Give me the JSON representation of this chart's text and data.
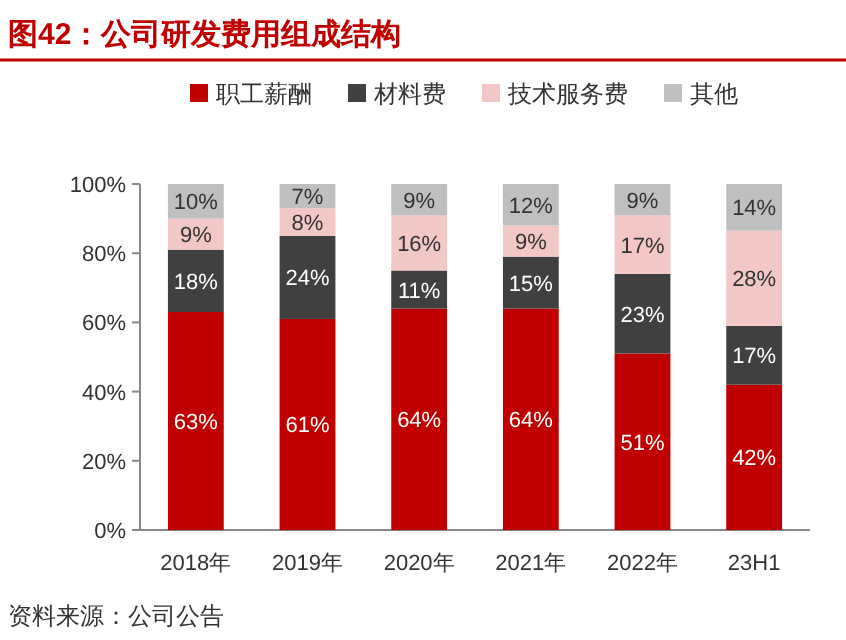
{
  "chart_data": {
    "type": "bar",
    "stacked": true,
    "title": "图42：公司研发费用组成结构",
    "annotations": [
      "资料来源：公司公告"
    ],
    "categories": [
      "2018年",
      "2019年",
      "2020年",
      "2021年",
      "2022年",
      "23H1"
    ],
    "series": [
      {
        "name": "职工薪酬",
        "color": "#c00000",
        "values": [
          63,
          61,
          64,
          64,
          51,
          42
        ],
        "value_labels": [
          "63%",
          "61%",
          "64%",
          "64%",
          "51%",
          "42%"
        ]
      },
      {
        "name": "材料费",
        "color": "#404040",
        "values": [
          18,
          24,
          11,
          15,
          23,
          17
        ],
        "value_labels": [
          "18%",
          "24%",
          "11%",
          "15%",
          "23%",
          "17%"
        ]
      },
      {
        "name": "技术服务费",
        "color": "#f4c7c7",
        "values": [
          9,
          8,
          16,
          9,
          17,
          27.5
        ],
        "value_labels": [
          "9%",
          "8%",
          "16%",
          "9%",
          "17%",
          "28%"
        ]
      },
      {
        "name": "其他",
        "color": "#bfbfbf",
        "values": [
          10,
          7,
          9,
          12,
          9,
          13.5
        ],
        "value_labels": [
          "10%",
          "7%",
          "9%",
          "12%",
          "9%",
          "14%"
        ]
      }
    ],
    "ylim": [
      0,
      100
    ],
    "yticks": [
      {
        "value": 0,
        "label": "0%"
      },
      {
        "value": 20,
        "label": "20%"
      },
      {
        "value": 40,
        "label": "40%"
      },
      {
        "value": 60,
        "label": "60%"
      },
      {
        "value": 80,
        "label": "80%"
      },
      {
        "value": 100,
        "label": "100%"
      }
    ],
    "legend": "top",
    "grid": false
  }
}
